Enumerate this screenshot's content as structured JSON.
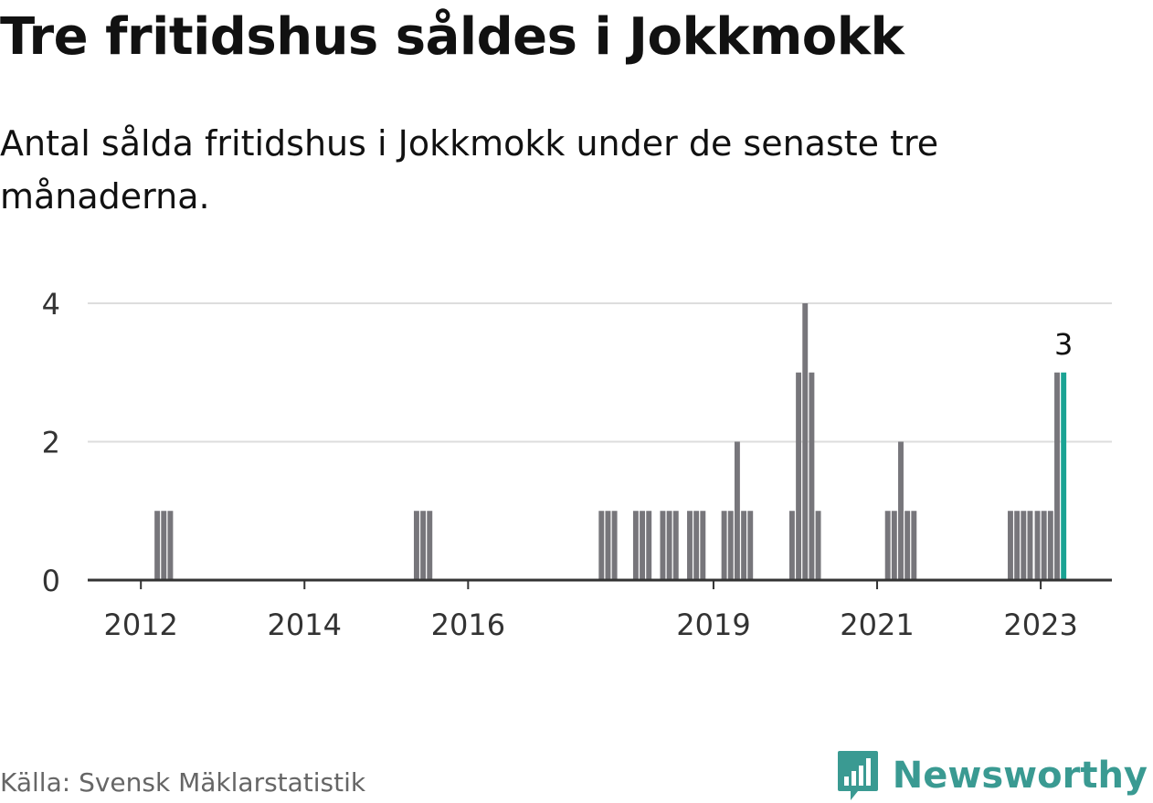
{
  "title": "Tre fritidshus såldes i Jokkmokk",
  "subtitle": "Antal sålda fritidshus i Jokkmokk under de senaste tre månaderna.",
  "source": "Källa: Svensk Mäklarstatistik",
  "brand": {
    "name": "Newsworthy",
    "icon": "newsworthy-logo-icon"
  },
  "colors": {
    "bar": "#77767b",
    "highlight": "#1aa394",
    "grid": "#dddddd",
    "axis": "#333333",
    "brand": "#3a9a92"
  },
  "chart_data": {
    "type": "bar",
    "xlabel": "",
    "ylabel": "",
    "ylim": [
      0,
      4
    ],
    "yticks": [
      0,
      2,
      4
    ],
    "grid": true,
    "xticks": [
      {
        "label": "2012",
        "x": 2012.0
      },
      {
        "label": "2014",
        "x": 2014.0
      },
      {
        "label": "2016",
        "x": 2016.0
      },
      {
        "label": "2019",
        "x": 2019.0
      },
      {
        "label": "2021",
        "x": 2021.0
      },
      {
        "label": "2023",
        "x": 2023.0
      }
    ],
    "x_start": 2011.35,
    "x_end": 2023.87,
    "bar_width_years": 0.066,
    "x": [
      2012.2,
      2012.28,
      2012.36,
      2015.37,
      2015.45,
      2015.53,
      2017.63,
      2017.71,
      2017.79,
      2018.05,
      2018.13,
      2018.21,
      2018.38,
      2018.46,
      2018.54,
      2018.71,
      2018.79,
      2018.87,
      2019.13,
      2019.21,
      2019.29,
      2019.37,
      2019.45,
      2019.96,
      2020.04,
      2020.12,
      2020.2,
      2020.28,
      2021.13,
      2021.21,
      2021.29,
      2021.37,
      2021.45,
      2022.63,
      2022.71,
      2022.79,
      2022.87,
      2022.96,
      2023.04,
      2023.12,
      2023.2,
      2023.28
    ],
    "values": [
      1,
      1,
      1,
      1,
      1,
      1,
      1,
      1,
      1,
      1,
      1,
      1,
      1,
      1,
      1,
      1,
      1,
      1,
      1,
      1,
      2,
      1,
      1,
      1,
      3,
      4,
      3,
      1,
      1,
      1,
      2,
      1,
      1,
      1,
      1,
      1,
      1,
      1,
      1,
      1,
      3,
      3
    ],
    "highlight_index": 41,
    "annotations": [
      {
        "label": "3",
        "x": 2023.28,
        "y": 3
      }
    ]
  }
}
